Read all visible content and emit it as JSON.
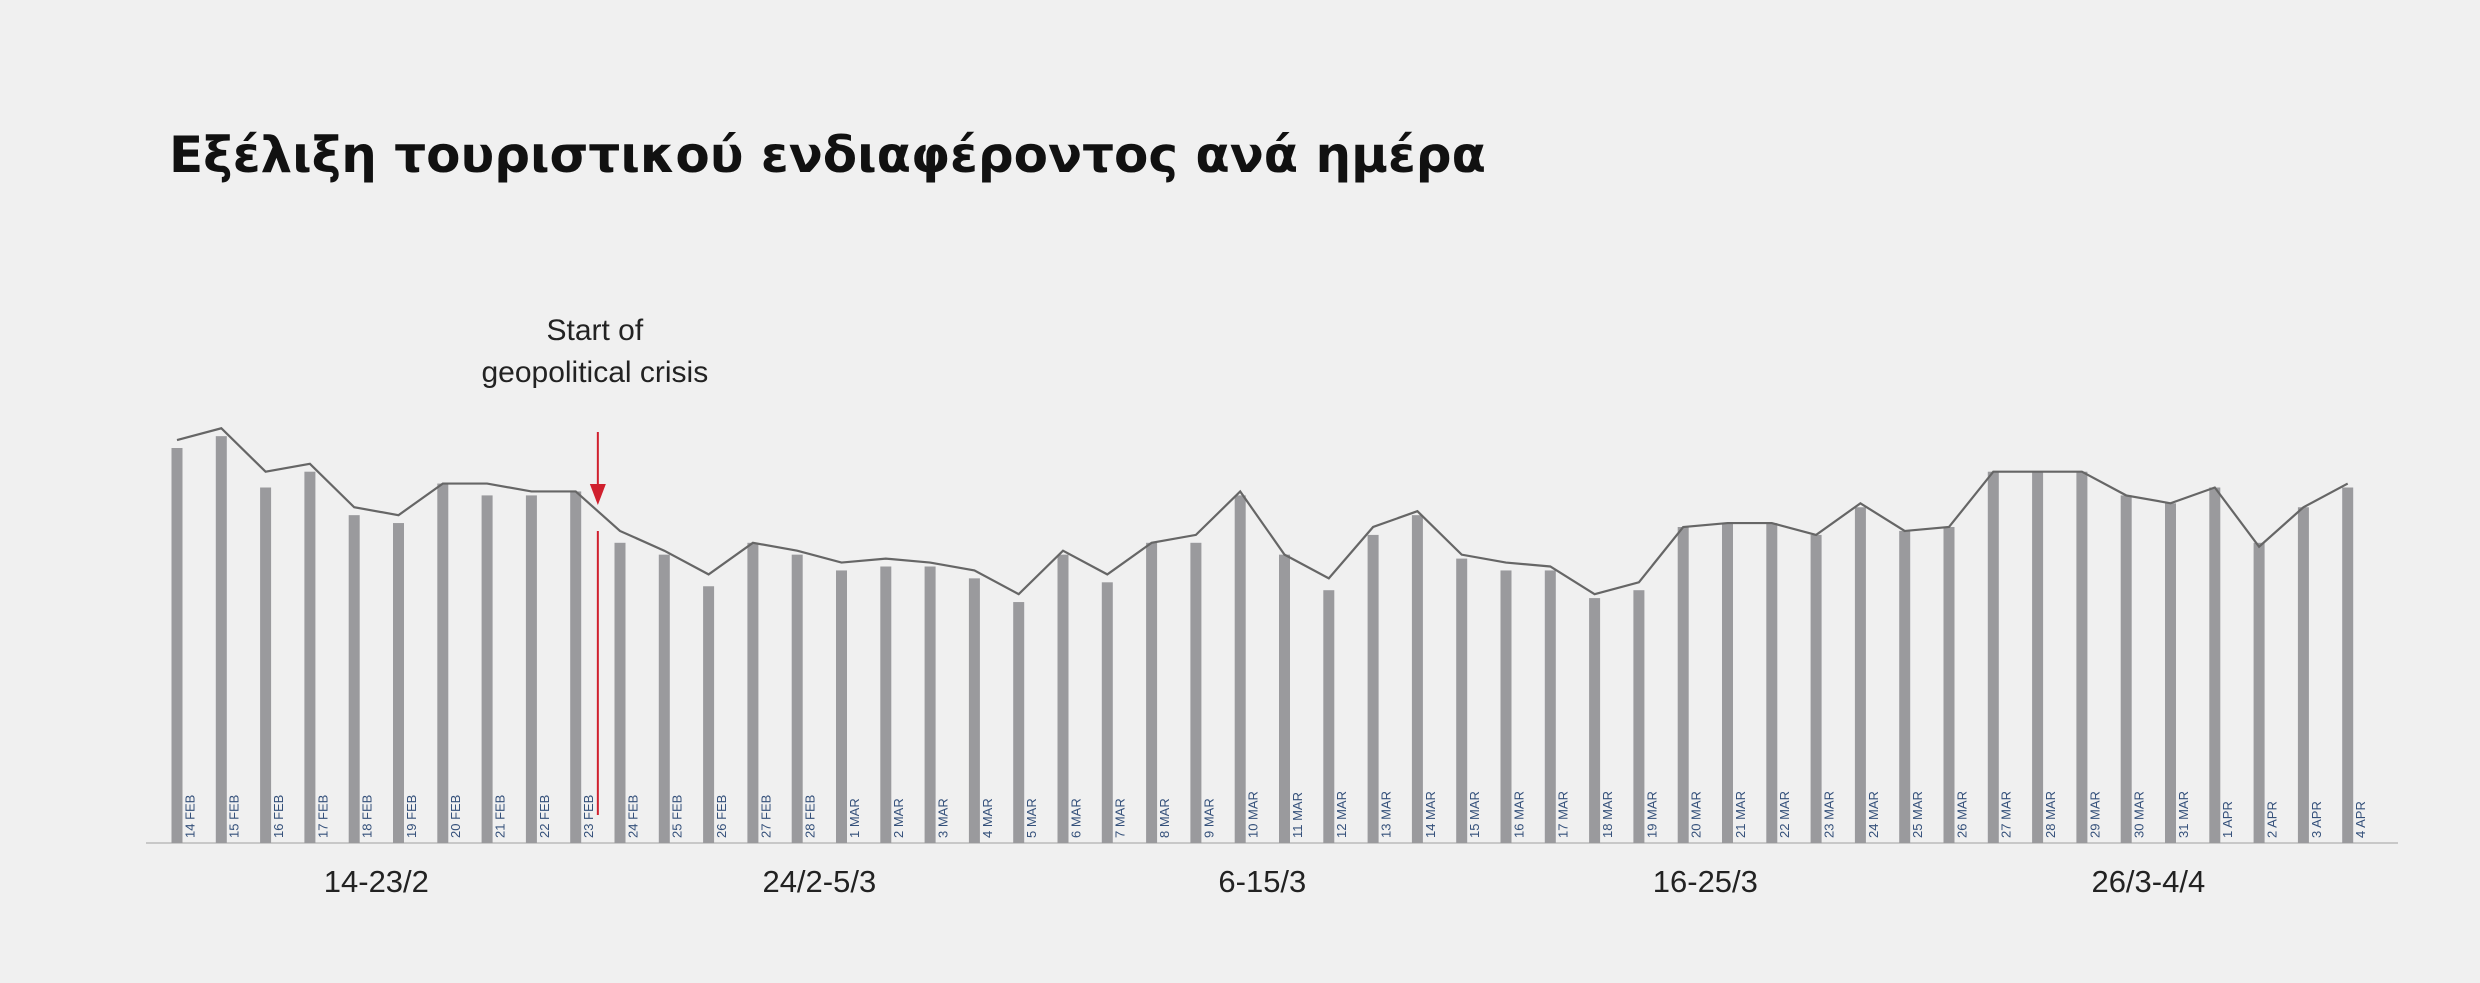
{
  "chart_data": {
    "type": "bar-line",
    "title": "Εξέλιξη τουριστικού ενδιαφέροντος ανά ημέρα",
    "annotation": "Start of\ngeopolitical crisis",
    "categories": [
      "14 FEB",
      "15 FEB",
      "16 FEB",
      "17 FEB",
      "18 FEB",
      "19 FEB",
      "20 FEB",
      "21 FEB",
      "22 FEB",
      "23 FEB",
      "24 FEB",
      "25 FEB",
      "26 FEB",
      "27 FEB",
      "28 FEB",
      "1 MAR",
      "2 MAR",
      "3 MAR",
      "4 MAR",
      "5 MAR",
      "6 MAR",
      "7 MAR",
      "8 MAR",
      "9 MAR",
      "10 MAR",
      "11 MAR",
      "12 MAR",
      "13 MAR",
      "14 MAR",
      "15 MAR",
      "16 MAR",
      "17 MAR",
      "18 MAR",
      "19 MAR",
      "20 MAR",
      "21 MAR",
      "22 MAR",
      "23 MAR",
      "24 MAR",
      "25 MAR",
      "26 MAR",
      "27 MAR",
      "28 MAR",
      "29 MAR",
      "30 MAR",
      "31 MAR",
      "1 APR",
      "2 APR",
      "3 APR",
      "4 APR"
    ],
    "groups": [
      "14-23/2",
      "24/2-5/3",
      "6-15/3",
      "16-25/3",
      "26/3-4/4"
    ],
    "series": [
      {
        "type": "bar",
        "color": "#9a9a9d",
        "values": [
          100,
          103,
          90,
          94,
          83,
          81,
          91,
          88,
          88,
          89,
          76,
          73,
          65,
          76,
          73,
          69,
          70,
          70,
          67,
          61,
          73,
          66,
          76,
          76,
          88,
          73,
          64,
          78,
          83,
          72,
          69,
          69,
          62,
          64,
          80,
          81,
          81,
          78,
          85,
          79,
          80,
          94,
          94,
          94,
          88,
          86,
          90,
          76,
          85,
          90
        ]
      },
      {
        "type": "line",
        "color": "#666666",
        "values": [
          102,
          105,
          94,
          96,
          85,
          83,
          91,
          91,
          89,
          89,
          79,
          74,
          68,
          76,
          74,
          71,
          72,
          71,
          69,
          63,
          74,
          68,
          76,
          78,
          89,
          73,
          67,
          80,
          84,
          73,
          71,
          70,
          63,
          66,
          80,
          81,
          81,
          78,
          86,
          79,
          80,
          94,
          94,
          94,
          88,
          86,
          90,
          75,
          85,
          91
        ]
      }
    ],
    "annotation_color": "#d0202e",
    "ylim": [
      0,
      100
    ]
  }
}
